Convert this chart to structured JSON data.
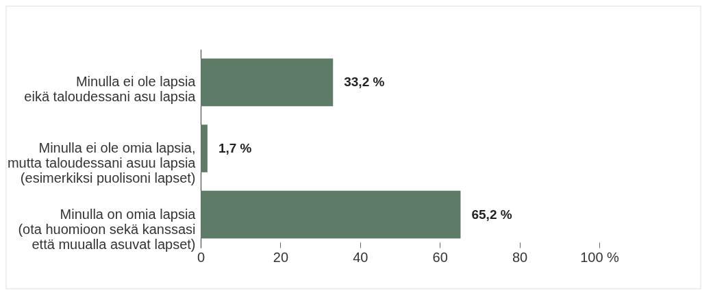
{
  "chart_data": {
    "type": "bar",
    "orientation": "horizontal",
    "categories": [
      "Minulla ei ole lapsia\neikä taloudessani asu lapsia",
      "Minulla ei ole omia lapsia,\nmutta taloudessani asuu lapsia\n(esimerkiksi puolisoni lapset)",
      "Minulla on omia lapsia\n(ota huomioon sekä kanssasi\nettä muualla asuvat lapset)"
    ],
    "values": [
      33.2,
      1.7,
      65.2
    ],
    "value_labels": [
      "33,2 %",
      "1,7 %",
      "65,2 %"
    ],
    "color": "#5e7b68",
    "xlim": [
      0,
      100
    ],
    "xticks": [
      0,
      20,
      40,
      60,
      80,
      {
        "value": 100,
        "label": "100 %"
      }
    ],
    "grid": false
  }
}
